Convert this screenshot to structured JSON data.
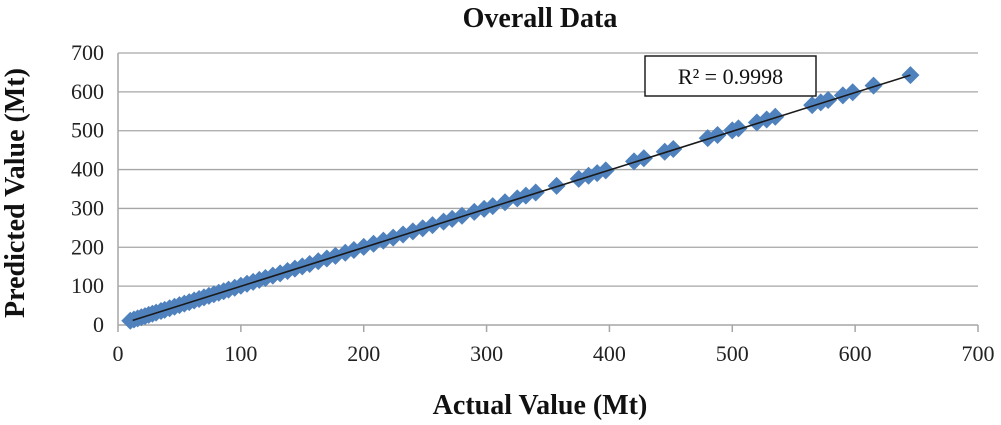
{
  "colors": {
    "marker": "#4f81bd",
    "trendline": "#1a1a1a",
    "gridline": "#a6a6a6",
    "axis": "#a6a6a6",
    "text": "#111111"
  },
  "chart_data": {
    "type": "scatter",
    "title": "Overall Data",
    "xlabel": "Actual Value (Mt)",
    "ylabel": "Predicted Value (Mt)",
    "xlim": [
      0,
      700
    ],
    "ylim": [
      0,
      700
    ],
    "x_ticks": [
      0,
      100,
      200,
      300,
      400,
      500,
      600,
      700
    ],
    "y_ticks": [
      0,
      100,
      200,
      300,
      400,
      500,
      600,
      700
    ],
    "grid": "horizontal",
    "marker": "diamond",
    "trendline": {
      "from": [
        12,
        12
      ],
      "to": [
        645,
        643
      ],
      "label": "R² = 0.9998"
    },
    "series": [
      {
        "points": [
          [
            10,
            11
          ],
          [
            13,
            14
          ],
          [
            16,
            17
          ],
          [
            19,
            20
          ],
          [
            22,
            23
          ],
          [
            25,
            26
          ],
          [
            28,
            29
          ],
          [
            31,
            32
          ],
          [
            35,
            36
          ],
          [
            38,
            39
          ],
          [
            42,
            43
          ],
          [
            46,
            47
          ],
          [
            50,
            51
          ],
          [
            54,
            55
          ],
          [
            58,
            59
          ],
          [
            62,
            63
          ],
          [
            66,
            67
          ],
          [
            70,
            71
          ],
          [
            74,
            75
          ],
          [
            78,
            79
          ],
          [
            82,
            83
          ],
          [
            86,
            87
          ],
          [
            90,
            91
          ],
          [
            95,
            96
          ],
          [
            100,
            101
          ],
          [
            105,
            106
          ],
          [
            110,
            111
          ],
          [
            115,
            116
          ],
          [
            120,
            121
          ],
          [
            126,
            127
          ],
          [
            132,
            133
          ],
          [
            138,
            139
          ],
          [
            144,
            145
          ],
          [
            150,
            151
          ],
          [
            156,
            157
          ],
          [
            163,
            164
          ],
          [
            170,
            171
          ],
          [
            177,
            178
          ],
          [
            185,
            186
          ],
          [
            192,
            193
          ],
          [
            200,
            201
          ],
          [
            208,
            209
          ],
          [
            216,
            217
          ],
          [
            224,
            225
          ],
          [
            232,
            233
          ],
          [
            240,
            241
          ],
          [
            248,
            249
          ],
          [
            256,
            257
          ],
          [
            265,
            266
          ],
          [
            272,
            273
          ],
          [
            280,
            281
          ],
          [
            290,
            291
          ],
          [
            298,
            299
          ],
          [
            305,
            306
          ],
          [
            315,
            316
          ],
          [
            325,
            326
          ],
          [
            332,
            333
          ],
          [
            340,
            341
          ],
          [
            357,
            358
          ],
          [
            375,
            376
          ],
          [
            383,
            384
          ],
          [
            390,
            391
          ],
          [
            397,
            398
          ],
          [
            420,
            421
          ],
          [
            428,
            429
          ],
          [
            445,
            446
          ],
          [
            452,
            453
          ],
          [
            480,
            481
          ],
          [
            488,
            489
          ],
          [
            500,
            501
          ],
          [
            505,
            506
          ],
          [
            520,
            521
          ],
          [
            528,
            529
          ],
          [
            535,
            536
          ],
          [
            565,
            566
          ],
          [
            572,
            573
          ],
          [
            578,
            579
          ],
          [
            590,
            591
          ],
          [
            598,
            599
          ],
          [
            615,
            616
          ],
          [
            645,
            643
          ]
        ]
      }
    ]
  }
}
